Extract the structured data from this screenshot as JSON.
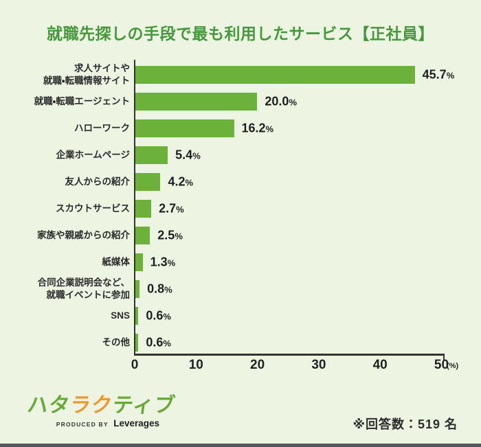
{
  "title": "就職先探しの手段で最も利用したサービス【正社員】",
  "chart_data": {
    "type": "bar",
    "orientation": "horizontal",
    "title": "就職先探しの手段で最も利用したサービス【正社員】",
    "categories": [
      "求人サイトや\n就職・転職情報サイト",
      "就職・転職エージェント",
      "ハローワーク",
      "企業ホームページ",
      "友人からの紹介",
      "スカウトサービス",
      "家族や親戚からの紹介",
      "紙媒体",
      "合同企業説明会など、\n就職イベントに参加",
      "SNS",
      "その他"
    ],
    "values": [
      45.7,
      20.0,
      16.2,
      5.4,
      4.2,
      2.7,
      2.5,
      1.3,
      0.8,
      0.6,
      0.6
    ],
    "value_labels": [
      "45.7%",
      "20.0%",
      "16.2%",
      "5.4%",
      "4.2%",
      "2.7%",
      "2.5%",
      "1.3%",
      "0.8%",
      "0.6%",
      "0.6%"
    ],
    "xlim": [
      0,
      50
    ],
    "xticks": [
      "0",
      "10",
      "20",
      "30",
      "40",
      "50"
    ],
    "x_unit": "(%)",
    "grid": false,
    "legend": "none",
    "bar_color": "#6cb23a"
  },
  "footer": {
    "logo": {
      "chars": [
        {
          "t": "ハ",
          "c": "#67aa36"
        },
        {
          "t": "タ",
          "c": "#67aa36"
        },
        {
          "t": "ラ",
          "c": "#f0962e"
        },
        {
          "t": "ク",
          "c": "#f0962e"
        },
        {
          "t": "テ",
          "c": "#67aa36"
        },
        {
          "t": "ィ",
          "c": "#67aa36"
        },
        {
          "t": "ブ",
          "c": "#67aa36"
        }
      ]
    },
    "produced_by": "PRODUCED BY",
    "company": "Leverages",
    "note": "※回答数：519 名"
  },
  "colors": {
    "background": "#edf5e2",
    "title": "#45993c",
    "bar": "#6cb23a",
    "text": "#2b2b2b",
    "axis": "#333333",
    "logo_green": "#67aa36",
    "logo_orange": "#f0962e",
    "bottom_bar": "#56575b"
  }
}
